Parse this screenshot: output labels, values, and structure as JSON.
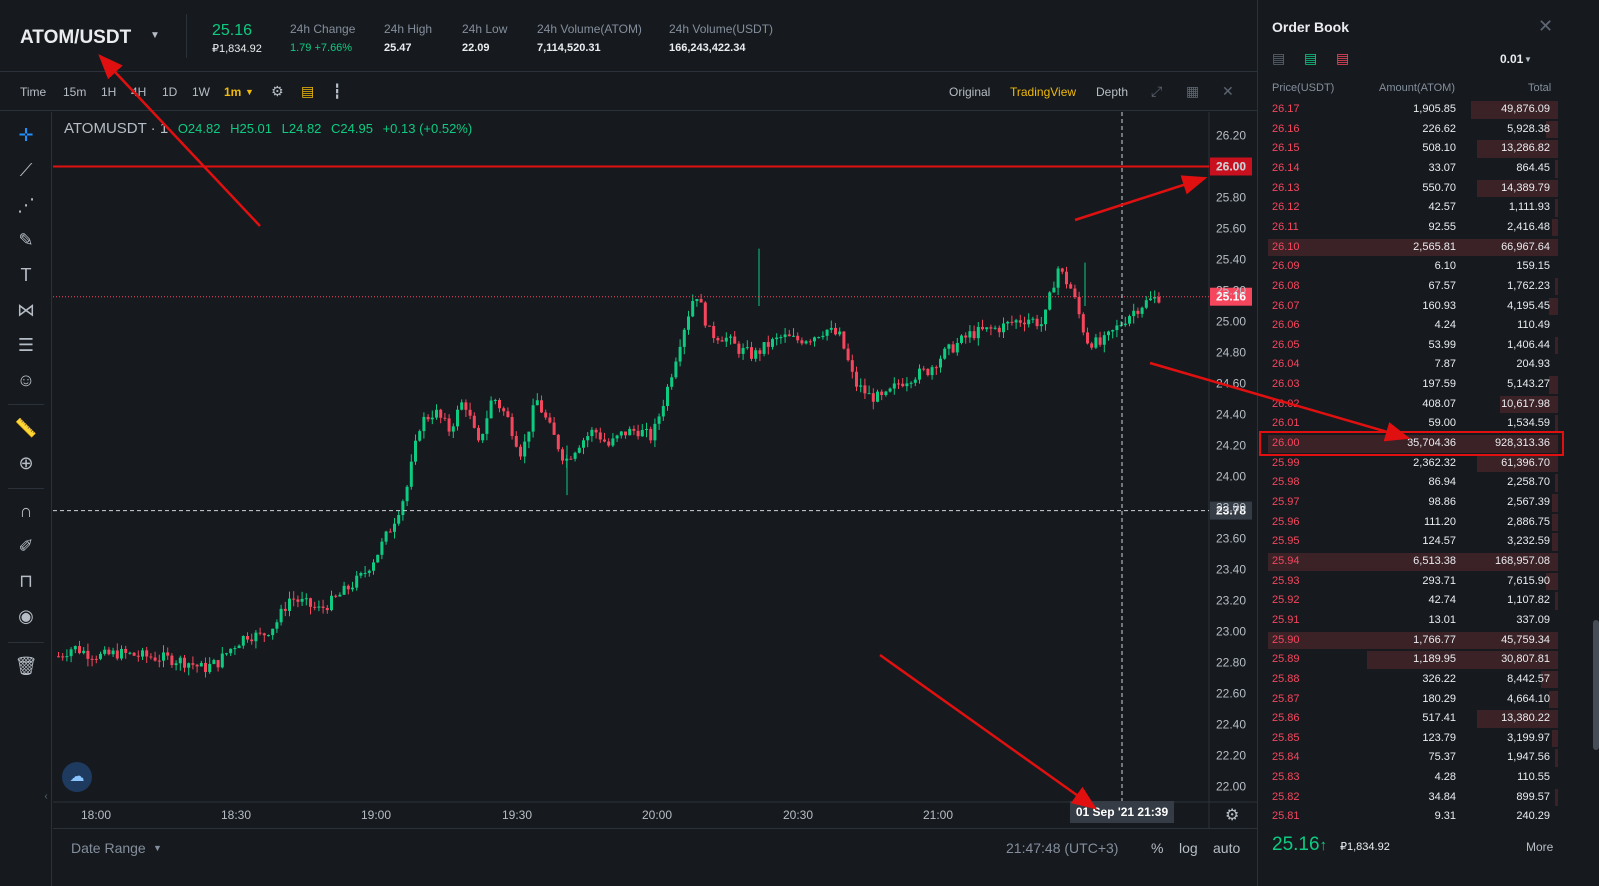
{
  "ticker": {
    "pair": "ATOM/USDT",
    "price": "25.16",
    "price_sub": "₽1,834.92",
    "stats": [
      {
        "label": "24h Change",
        "value": "1.79 +7.66%",
        "green": true
      },
      {
        "label": "24h High",
        "value": "25.47",
        "green": false
      },
      {
        "label": "24h Low",
        "value": "22.09",
        "green": false
      },
      {
        "label": "24h Volume(ATOM)",
        "value": "7,114,520.31",
        "green": false
      },
      {
        "label": "24h Volume(USDT)",
        "value": "166,243,422.34",
        "green": false
      }
    ]
  },
  "toolbar": {
    "intervals": [
      "Time",
      "15m",
      "1H",
      "4H",
      "1D",
      "1W",
      "1m"
    ],
    "active_interval": "1m",
    "views": [
      "Original",
      "TradingView",
      "Depth"
    ],
    "active_view": "TradingView"
  },
  "legend": {
    "symbol": "ATOMUSDT · 1",
    "o": "O24.82",
    "h": "H25.01",
    "l": "L24.82",
    "c": "C24.95",
    "chg": "+0.13 (+0.52%)"
  },
  "chart_data": {
    "type": "candlestick",
    "symbol": "ATOMUSDT",
    "interval": "1",
    "x_ticks": [
      "18:00",
      "18:30",
      "19:00",
      "19:30",
      "20:00",
      "20:30",
      "21:00"
    ],
    "crosshair_x_label": "01 Sep '21   21:39",
    "y_ticks": [
      "26.20",
      "26.00",
      "25.80",
      "25.60",
      "25.40",
      "25.20",
      "25.00",
      "24.80",
      "24.60",
      "24.40",
      "24.20",
      "24.00",
      "23.80",
      "23.60",
      "23.40",
      "23.20",
      "23.00",
      "22.80",
      "22.60",
      "22.40",
      "22.20",
      "22.00"
    ],
    "ylim": [
      21.9,
      26.3
    ],
    "horizontal_line": 26.0,
    "horizontal_line_label": "26.00",
    "last_price": 25.16,
    "last_price_label": "25.16",
    "crosshair_price": 23.78,
    "crosshair_price_label": "23.78",
    "colors": {
      "up": "#0ecb81",
      "down": "#f6465d",
      "line": "#e01010"
    },
    "close_path": [
      [
        0,
        22.84
      ],
      [
        4,
        22.9
      ],
      [
        8,
        22.86
      ],
      [
        12,
        22.84
      ],
      [
        16,
        22.86
      ],
      [
        20,
        22.85
      ],
      [
        24,
        22.84
      ],
      [
        28,
        22.83
      ],
      [
        32,
        22.82
      ],
      [
        36,
        22.8
      ],
      [
        40,
        22.76
      ],
      [
        44,
        22.8
      ],
      [
        48,
        22.9
      ],
      [
        52,
        22.98
      ],
      [
        56,
        22.97
      ],
      [
        60,
        23.05
      ],
      [
        64,
        23.22
      ],
      [
        68,
        23.18
      ],
      [
        72,
        23.14
      ],
      [
        76,
        23.2
      ],
      [
        80,
        23.28
      ],
      [
        84,
        23.36
      ],
      [
        88,
        23.5
      ],
      [
        92,
        23.68
      ],
      [
        96,
        23.9
      ],
      [
        100,
        24.35
      ],
      [
        104,
        24.42
      ],
      [
        108,
        24.3
      ],
      [
        112,
        24.5
      ],
      [
        116,
        24.2
      ],
      [
        120,
        24.52
      ],
      [
        124,
        24.38
      ],
      [
        128,
        24.14
      ],
      [
        132,
        24.5
      ],
      [
        136,
        24.3
      ],
      [
        140,
        24.1
      ],
      [
        144,
        24.22
      ],
      [
        148,
        24.3
      ],
      [
        152,
        24.2
      ],
      [
        156,
        24.28
      ],
      [
        160,
        24.3
      ],
      [
        164,
        24.25
      ],
      [
        168,
        24.55
      ],
      [
        172,
        24.9
      ],
      [
        176,
        25.2
      ],
      [
        180,
        24.92
      ],
      [
        184,
        24.9
      ],
      [
        188,
        24.82
      ],
      [
        192,
        24.78
      ],
      [
        196,
        24.85
      ],
      [
        200,
        24.9
      ],
      [
        204,
        24.88
      ],
      [
        208,
        24.9
      ],
      [
        212,
        24.95
      ],
      [
        216,
        24.9
      ],
      [
        220,
        24.6
      ],
      [
        224,
        24.52
      ],
      [
        228,
        24.5
      ],
      [
        232,
        24.6
      ],
      [
        236,
        24.65
      ],
      [
        240,
        24.68
      ],
      [
        244,
        24.78
      ],
      [
        248,
        24.85
      ],
      [
        252,
        24.92
      ],
      [
        256,
        24.94
      ],
      [
        260,
        24.96
      ],
      [
        264,
        25.0
      ],
      [
        268,
        25.02
      ],
      [
        272,
        24.98
      ],
      [
        276,
        25.35
      ],
      [
        280,
        25.2
      ],
      [
        284,
        24.88
      ],
      [
        288,
        24.85
      ],
      [
        292,
        24.95
      ],
      [
        296,
        25.05
      ],
      [
        300,
        25.12
      ],
      [
        304,
        25.16
      ]
    ]
  },
  "bottombar": {
    "date_range": "Date Range",
    "time": "21:47:48 (UTC+3)",
    "pct": "%",
    "log": "log",
    "auto": "auto"
  },
  "orderbook": {
    "title": "Order Book",
    "tick": "0.01",
    "headers": {
      "price": "Price(USDT)",
      "amount": "Amount(ATOM)",
      "total": "Total"
    },
    "rows": [
      {
        "p": "26.17",
        "a": "1,905.85",
        "t": "49,876.09",
        "d": 0.3
      },
      {
        "p": "26.16",
        "a": "226.62",
        "t": "5,928.38",
        "d": 0.04
      },
      {
        "p": "26.15",
        "a": "508.10",
        "t": "13,286.82",
        "d": 0.28
      },
      {
        "p": "26.14",
        "a": "33.07",
        "t": "864.45",
        "d": 0.01
      },
      {
        "p": "26.13",
        "a": "550.70",
        "t": "14,389.79",
        "d": 0.28
      },
      {
        "p": "26.12",
        "a": "42.57",
        "t": "1,111.93",
        "d": 0.01
      },
      {
        "p": "26.11",
        "a": "92.55",
        "t": "2,416.48",
        "d": 0.02
      },
      {
        "p": "26.10",
        "a": "2,565.81",
        "t": "66,967.64",
        "d": 1.0
      },
      {
        "p": "26.09",
        "a": "6.10",
        "t": "159.15",
        "d": 0.0
      },
      {
        "p": "26.08",
        "a": "67.57",
        "t": "1,762.23",
        "d": 0.01
      },
      {
        "p": "26.07",
        "a": "160.93",
        "t": "4,195.45",
        "d": 0.03
      },
      {
        "p": "26.06",
        "a": "4.24",
        "t": "110.49",
        "d": 0.0
      },
      {
        "p": "26.05",
        "a": "53.99",
        "t": "1,406.44",
        "d": 0.01
      },
      {
        "p": "26.04",
        "a": "7.87",
        "t": "204.93",
        "d": 0.0
      },
      {
        "p": "26.03",
        "a": "197.59",
        "t": "5,143.27",
        "d": 0.03
      },
      {
        "p": "26.02",
        "a": "408.07",
        "t": "10,617.98",
        "d": 0.2
      },
      {
        "p": "26.01",
        "a": "59.00",
        "t": "1,534.59",
        "d": 0.01
      },
      {
        "p": "26.00",
        "a": "35,704.36",
        "t": "928,313.36",
        "d": 1.0
      },
      {
        "p": "25.99",
        "a": "2,362.32",
        "t": "61,396.70",
        "d": 0.28
      },
      {
        "p": "25.98",
        "a": "86.94",
        "t": "2,258.70",
        "d": 0.01
      },
      {
        "p": "25.97",
        "a": "98.86",
        "t": "2,567.39",
        "d": 0.02
      },
      {
        "p": "25.96",
        "a": "111.20",
        "t": "2,886.75",
        "d": 0.02
      },
      {
        "p": "25.95",
        "a": "124.57",
        "t": "3,232.59",
        "d": 0.02
      },
      {
        "p": "25.94",
        "a": "6,513.38",
        "t": "168,957.08",
        "d": 1.0
      },
      {
        "p": "25.93",
        "a": "293.71",
        "t": "7,615.90",
        "d": 0.04
      },
      {
        "p": "25.92",
        "a": "42.74",
        "t": "1,107.82",
        "d": 0.01
      },
      {
        "p": "25.91",
        "a": "13.01",
        "t": "337.09",
        "d": 0.0
      },
      {
        "p": "25.90",
        "a": "1,766.77",
        "t": "45,759.34",
        "d": 1.0
      },
      {
        "p": "25.89",
        "a": "1,189.95",
        "t": "30,807.81",
        "d": 0.66
      },
      {
        "p": "25.88",
        "a": "326.22",
        "t": "8,442.57",
        "d": 0.06
      },
      {
        "p": "25.87",
        "a": "180.29",
        "t": "4,664.10",
        "d": 0.03
      },
      {
        "p": "25.86",
        "a": "517.41",
        "t": "13,380.22",
        "d": 0.28
      },
      {
        "p": "25.85",
        "a": "123.79",
        "t": "3,199.97",
        "d": 0.02
      },
      {
        "p": "25.84",
        "a": "75.37",
        "t": "1,947.56",
        "d": 0.01
      },
      {
        "p": "25.83",
        "a": "4.28",
        "t": "110.55",
        "d": 0.0
      },
      {
        "p": "25.82",
        "a": "34.84",
        "t": "899.57",
        "d": 0.01
      },
      {
        "p": "25.81",
        "a": "9.31",
        "t": "240.29",
        "d": 0.0
      }
    ],
    "last_price": "25.16",
    "last_arrow": "↑",
    "last_sub": "₽1,834.92",
    "more": "More"
  }
}
